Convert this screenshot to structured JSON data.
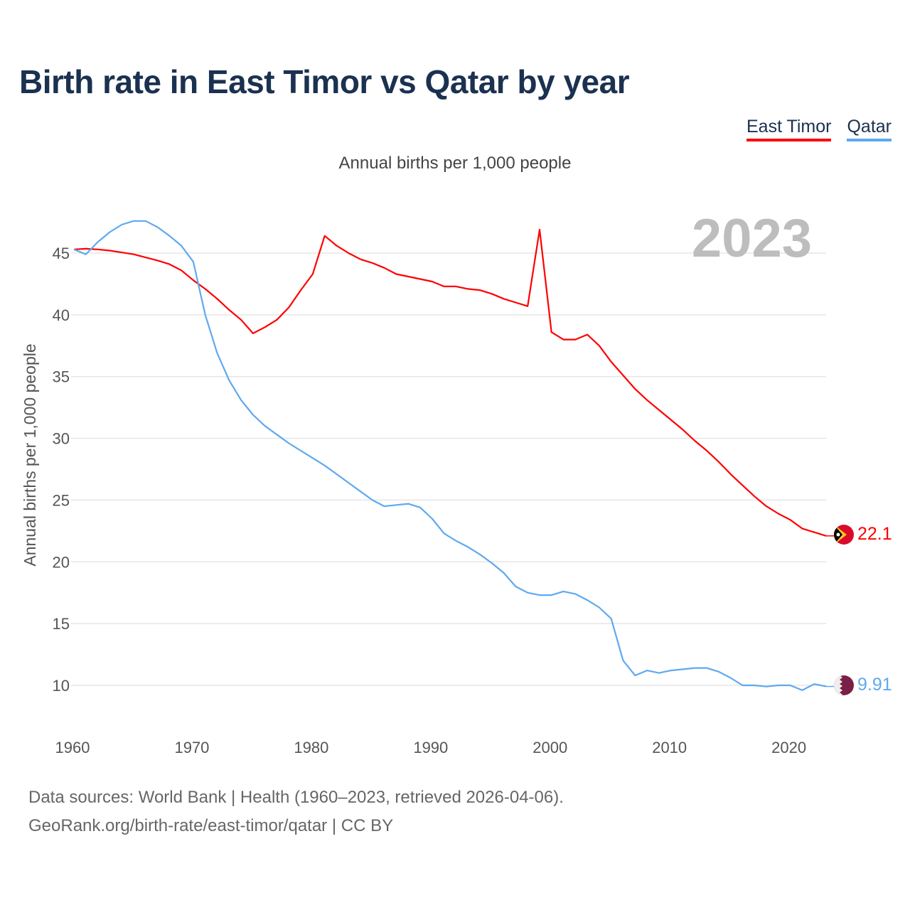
{
  "title": "Birth rate in East Timor vs Qatar by year",
  "subtitle": "Annual births per 1,000 people",
  "year_label": "2023",
  "footer": {
    "line1": "Data sources: World Bank | Health (1960–2023, retrieved 2026-04-06).",
    "line2": "GeoRank.org/birth-rate/east-timor/qatar | CC BY"
  },
  "chart_data": {
    "type": "line",
    "title": "Birth rate in East Timor vs Qatar by year",
    "xlabel": "",
    "ylabel": "Annual births per 1,000 people",
    "xlim": [
      1960,
      2023
    ],
    "ylim": [
      7.5,
      48
    ],
    "grid": true,
    "legend": "top-right",
    "xticks": [
      1960,
      1970,
      1980,
      1990,
      2000,
      2010,
      2020
    ],
    "yticks": [
      10,
      15,
      20,
      25,
      30,
      35,
      40,
      45
    ],
    "x_start": 1960,
    "series": [
      {
        "name": "East Timor",
        "color": "#ff0000",
        "end_label": "22.1",
        "flag": "east-timor-flag",
        "values": [
          45.3,
          45.35,
          45.3,
          45.2,
          45.05,
          44.9,
          44.65,
          44.4,
          44.1,
          43.6,
          42.8,
          42.1,
          41.3,
          40.4,
          39.6,
          38.5,
          39.0,
          39.6,
          40.6,
          42.0,
          43.3,
          46.4,
          45.6,
          45.0,
          44.5,
          44.2,
          43.8,
          43.3,
          43.1,
          42.9,
          42.7,
          42.3,
          42.3,
          42.1,
          42.0,
          41.7,
          41.3,
          41.0,
          40.7,
          46.9,
          38.6,
          38.0,
          38.0,
          38.4,
          37.5,
          36.2,
          35.1,
          34.0,
          33.1,
          32.3,
          31.5,
          30.7,
          29.8,
          29.0,
          28.1,
          27.1,
          26.2,
          25.3,
          24.5,
          23.9,
          23.4,
          22.7,
          22.4,
          22.1
        ]
      },
      {
        "name": "Qatar",
        "color": "#5ea9f0",
        "end_label": "9.91",
        "flag": "qatar-flag",
        "values": [
          45.3,
          44.9,
          45.9,
          46.7,
          47.3,
          47.6,
          47.6,
          47.1,
          46.4,
          45.6,
          44.3,
          40.0,
          36.9,
          34.7,
          33.1,
          31.9,
          31.0,
          30.3,
          29.6,
          29.0,
          28.4,
          27.8,
          27.1,
          26.4,
          25.7,
          25.0,
          24.5,
          24.6,
          24.7,
          24.4,
          23.5,
          22.3,
          21.7,
          21.2,
          20.6,
          19.9,
          19.1,
          18.0,
          17.5,
          17.3,
          17.3,
          17.6,
          17.4,
          16.9,
          16.3,
          15.4,
          12.0,
          10.8,
          11.2,
          11.0,
          11.2,
          11.3,
          11.4,
          11.4,
          11.1,
          10.6,
          10.0,
          10.0,
          9.9,
          10.0,
          10.0,
          9.6,
          10.1,
          9.91
        ]
      }
    ]
  }
}
